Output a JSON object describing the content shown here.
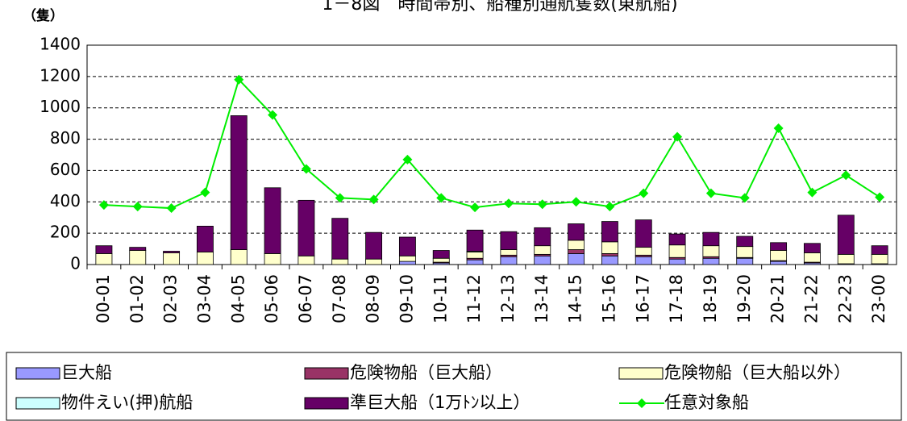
{
  "chart_data": {
    "type": "bar",
    "stacked": true,
    "title": "1－8図　時間帯別、船種別通航隻数(東航船)",
    "y_label": "（隻）",
    "categories": [
      "00-01",
      "01-02",
      "02-03",
      "03-04",
      "04-05",
      "05-06",
      "06-07",
      "07-08",
      "08-09",
      "09-10",
      "10-11",
      "11-12",
      "12-13",
      "13-14",
      "14-15",
      "15-16",
      "16-17",
      "17-18",
      "18-19",
      "19-20",
      "20-21",
      "21-22",
      "22-23",
      "23-00"
    ],
    "series": [
      {
        "name": "巨大船",
        "color": "#9999ff",
        "values": [
          0,
          0,
          0,
          0,
          0,
          0,
          0,
          0,
          0,
          20,
          10,
          30,
          50,
          55,
          70,
          55,
          50,
          35,
          40,
          40,
          20,
          10,
          5,
          5
        ]
      },
      {
        "name": "危険物船（巨大船）",
        "color": "#993366",
        "values": [
          0,
          0,
          0,
          0,
          0,
          0,
          0,
          0,
          0,
          0,
          5,
          10,
          10,
          10,
          25,
          15,
          10,
          10,
          10,
          5,
          5,
          5,
          0,
          0
        ]
      },
      {
        "name": "危険物船（巨大船以外）",
        "color": "#ffffcc",
        "values": [
          70,
          90,
          75,
          80,
          95,
          70,
          55,
          35,
          35,
          35,
          25,
          40,
          35,
          55,
          60,
          75,
          50,
          80,
          70,
          70,
          65,
          60,
          60,
          60
        ]
      },
      {
        "name": "物件えい(押)航船",
        "color": "#ccffff",
        "values": [
          0,
          0,
          0,
          0,
          0,
          0,
          0,
          0,
          0,
          0,
          0,
          5,
          0,
          0,
          0,
          0,
          0,
          0,
          0,
          0,
          0,
          0,
          0,
          0
        ]
      },
      {
        "name": "準巨大船（1万ﾄﾝ以上）",
        "color": "#660066",
        "values": [
          50,
          20,
          10,
          165,
          855,
          420,
          355,
          260,
          170,
          120,
          50,
          135,
          115,
          115,
          105,
          130,
          175,
          70,
          85,
          65,
          50,
          60,
          250,
          55
        ]
      },
      {
        "name": "任意対象船",
        "color": "#00ee00",
        "type": "line",
        "values": [
          380,
          370,
          360,
          460,
          1180,
          955,
          610,
          425,
          415,
          670,
          425,
          365,
          390,
          385,
          400,
          370,
          455,
          815,
          455,
          425,
          870,
          460,
          570,
          430
        ]
      }
    ],
    "ylim": [
      0,
      1400
    ],
    "yticks": [
      0,
      200,
      400,
      600,
      800,
      1000,
      1200,
      1400
    ],
    "grid": true
  }
}
